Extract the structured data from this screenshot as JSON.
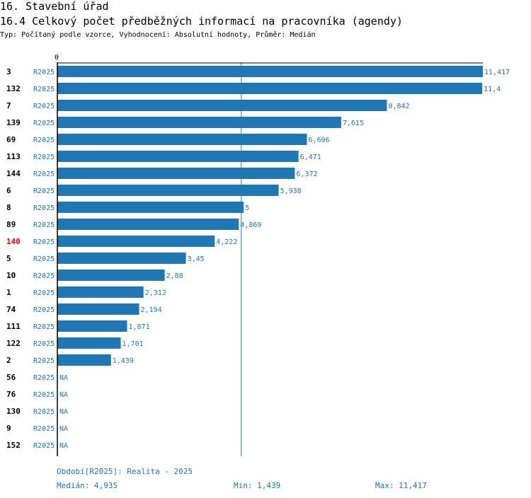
{
  "header": {
    "title": "16. Stavební úřad",
    "subtitle": "16.4 Celkový počet předběžných informací na pracovníka (agendy)",
    "description": "Typ: Počítaný podle vzorce, Vyhodnocení: Absolutní hodnoty, Průměr: Medián"
  },
  "colors": {
    "bar": "#1f77b4",
    "value_text": "#1f77b4",
    "highlight_id": "#ff0000",
    "id_text": "#000000",
    "axis": "#000000",
    "median_line": "#1f77b4"
  },
  "chart_data": {
    "type": "bar",
    "orientation": "horizontal",
    "x_tick_label": "0",
    "xlim": [
      0,
      11.417
    ],
    "median": 4.935,
    "highlighted": "140",
    "categories": [
      "3",
      "132",
      "7",
      "139",
      "69",
      "113",
      "144",
      "6",
      "8",
      "89",
      "140",
      "5",
      "10",
      "1",
      "74",
      "111",
      "122",
      "2",
      "56",
      "76",
      "130",
      "9",
      "152"
    ],
    "series_label": "R2025",
    "values": [
      11.417,
      11.4,
      8.842,
      7.615,
      6.696,
      6.471,
      6.372,
      5.938,
      5,
      4.869,
      4.222,
      3.45,
      2.88,
      2.312,
      2.194,
      1.871,
      1.701,
      1.439,
      null,
      null,
      null,
      null,
      null
    ],
    "value_labels": [
      "11,417",
      "11,4",
      "8,842",
      "7,615",
      "6,696",
      "6,471",
      "6,372",
      "5,938",
      "5",
      "4,869",
      "4,222",
      "3,45",
      "2,88",
      "2,312",
      "2,194",
      "1,871",
      "1,701",
      "1,439",
      "NA",
      "NA",
      "NA",
      "NA",
      "NA"
    ]
  },
  "footer": {
    "period": "Období[R2025]: Realita - 2025",
    "median": "Medián: 4,935",
    "min": "Min: 1,439",
    "max": "Max: 11,417"
  }
}
